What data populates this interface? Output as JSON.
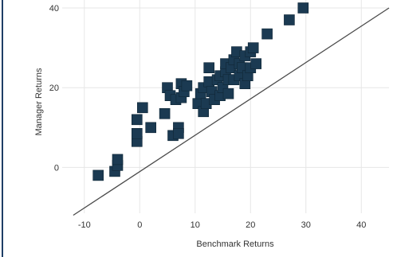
{
  "chart_data": {
    "type": "scatter",
    "xlabel": "Benchmark Returns",
    "ylabel": "Manager Returns",
    "xlim": [
      -14,
      45
    ],
    "ylim": [
      -11.5,
      42
    ],
    "xticks": [
      -10,
      0,
      10,
      20,
      30,
      40
    ],
    "yticks": [
      0,
      20,
      40
    ],
    "grid": true,
    "marker_color": "#1b3a52",
    "reference_line": {
      "label": "",
      "x": [
        -12,
        45
      ],
      "y": [
        -12,
        40
      ]
    },
    "series": [
      {
        "name": "",
        "points": [
          [
            -7.5,
            -2
          ],
          [
            -4.5,
            -1
          ],
          [
            -4,
            0.5
          ],
          [
            -4,
            2
          ],
          [
            -0.5,
            6.5
          ],
          [
            -0.5,
            8.5
          ],
          [
            -0.5,
            12
          ],
          [
            0.5,
            15
          ],
          [
            2,
            10
          ],
          [
            4.5,
            13.5
          ],
          [
            5,
            20
          ],
          [
            5.5,
            18
          ],
          [
            6,
            8
          ],
          [
            6.5,
            17
          ],
          [
            7,
            10
          ],
          [
            7,
            8.5
          ],
          [
            7.5,
            21
          ],
          [
            7.5,
            17.5
          ],
          [
            8,
            19
          ],
          [
            8.5,
            20.5
          ],
          [
            10.5,
            16
          ],
          [
            11,
            18.5
          ],
          [
            11.5,
            14
          ],
          [
            11.5,
            20
          ],
          [
            12,
            16
          ],
          [
            12.5,
            21.5
          ],
          [
            12.5,
            25
          ],
          [
            13,
            19
          ],
          [
            13.5,
            17
          ],
          [
            14,
            22
          ],
          [
            14.5,
            18
          ],
          [
            14.5,
            23
          ],
          [
            15,
            20
          ],
          [
            15.5,
            24
          ],
          [
            15.5,
            26
          ],
          [
            16,
            18.5
          ],
          [
            16,
            22
          ],
          [
            16.5,
            25
          ],
          [
            17,
            27
          ],
          [
            17,
            22
          ],
          [
            17.5,
            29
          ],
          [
            18,
            23
          ],
          [
            18,
            26
          ],
          [
            18.5,
            25
          ],
          [
            19,
            28
          ],
          [
            19,
            21
          ],
          [
            19.5,
            23
          ],
          [
            20,
            29
          ],
          [
            20,
            25
          ],
          [
            20.5,
            30
          ],
          [
            21,
            26
          ],
          [
            23,
            33.5
          ],
          [
            27,
            37
          ],
          [
            29.5,
            40
          ]
        ]
      }
    ]
  }
}
